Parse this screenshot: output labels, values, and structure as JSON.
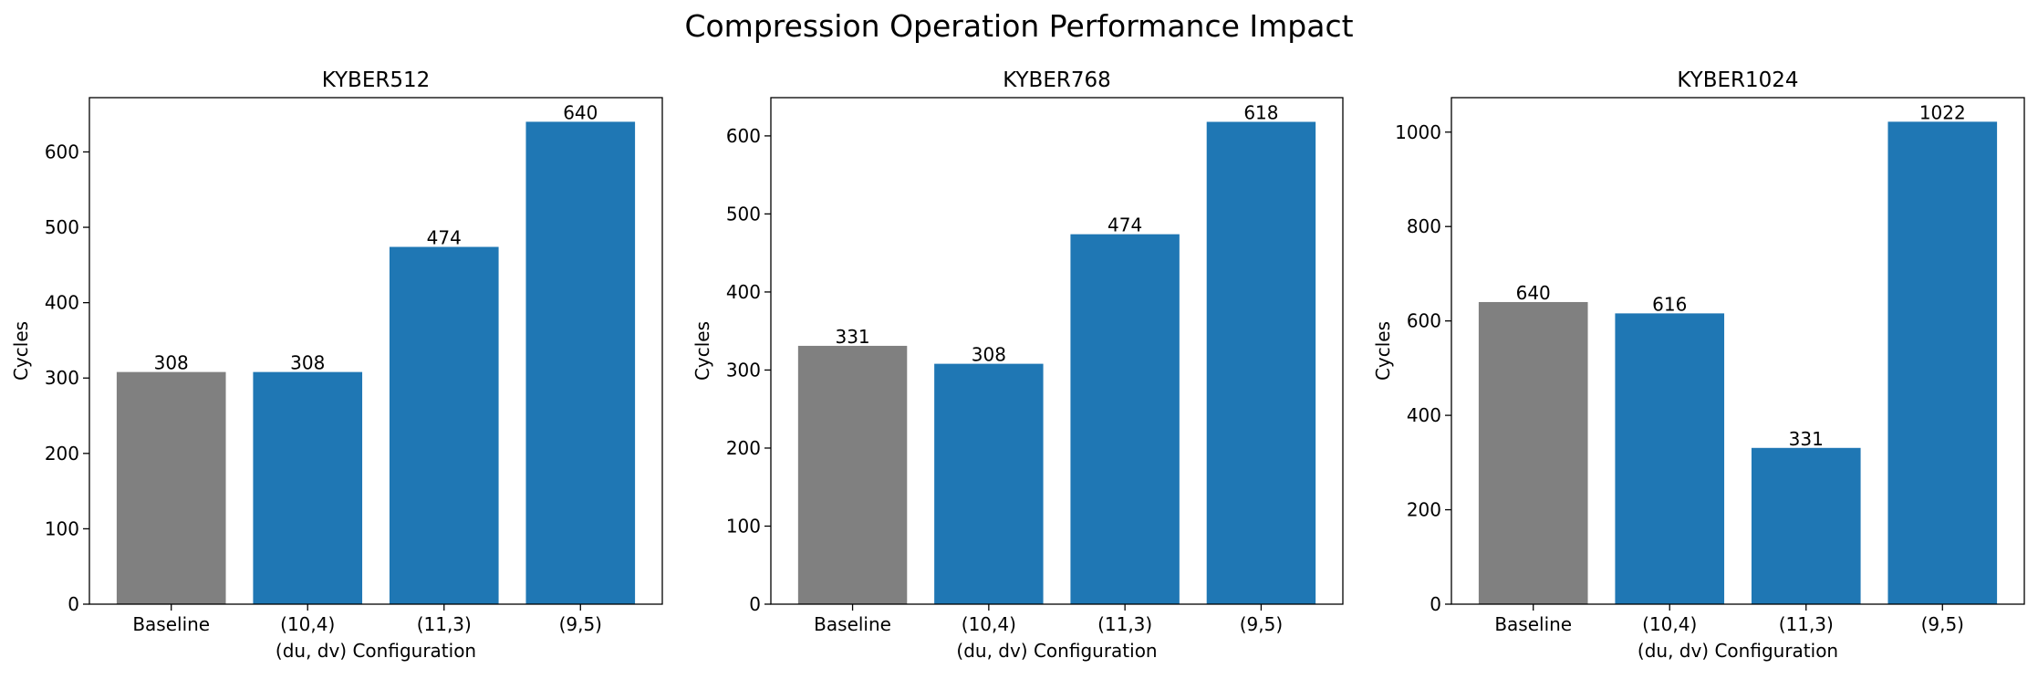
{
  "figure": {
    "title": "Compression Operation Performance Impact"
  },
  "colors": {
    "baseline": "#808080",
    "configuration": "#1f77b4"
  },
  "chart_data": [
    {
      "type": "bar",
      "title": "KYBER512",
      "xlabel": "(du, dv) Configuration",
      "ylabel": "Cycles",
      "categories": [
        "Baseline",
        "(10,4)",
        "(11,3)",
        "(9,5)"
      ],
      "values": [
        308,
        308,
        474,
        640
      ],
      "data_labels": [
        "308",
        "308",
        "474",
        "640"
      ],
      "ylim": [
        0,
        672
      ],
      "yticks": [
        0,
        100,
        200,
        300,
        400,
        500,
        600
      ],
      "bar_colors": [
        "baseline",
        "configuration",
        "configuration",
        "configuration"
      ],
      "grid": false
    },
    {
      "type": "bar",
      "title": "KYBER768",
      "xlabel": "(du, dv) Configuration",
      "ylabel": "Cycles",
      "categories": [
        "Baseline",
        "(10,4)",
        "(11,3)",
        "(9,5)"
      ],
      "values": [
        331,
        308,
        474,
        618
      ],
      "data_labels": [
        "331",
        "308",
        "474",
        "618"
      ],
      "ylim": [
        0,
        649
      ],
      "yticks": [
        0,
        100,
        200,
        300,
        400,
        500,
        600
      ],
      "bar_colors": [
        "baseline",
        "configuration",
        "configuration",
        "configuration"
      ],
      "grid": false
    },
    {
      "type": "bar",
      "title": "KYBER1024",
      "xlabel": "(du, dv) Configuration",
      "ylabel": "Cycles",
      "categories": [
        "Baseline",
        "(10,4)",
        "(11,3)",
        "(9,5)"
      ],
      "values": [
        640,
        616,
        331,
        1022
      ],
      "data_labels": [
        "640",
        "616",
        "331",
        "1022"
      ],
      "ylim": [
        0,
        1073
      ],
      "yticks": [
        0,
        200,
        400,
        600,
        800,
        1000
      ],
      "bar_colors": [
        "baseline",
        "configuration",
        "configuration",
        "configuration"
      ],
      "grid": false
    }
  ]
}
